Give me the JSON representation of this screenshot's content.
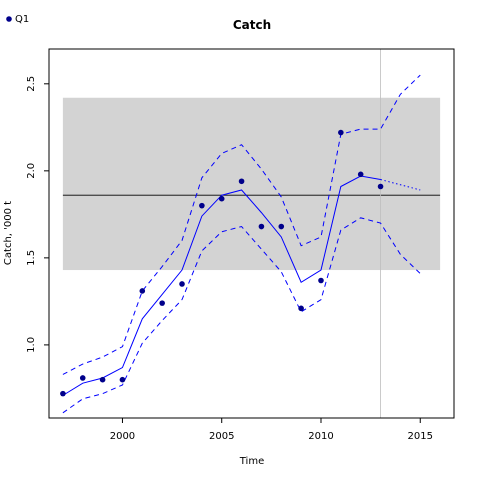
{
  "chart_data": {
    "type": "line",
    "title": "Catch",
    "xlabel": "Time",
    "ylabel": "Catch, '000 t",
    "xlim": [
      1996.3,
      2016.7
    ],
    "ylim": [
      0.58,
      2.7
    ],
    "x_ticks": [
      2000,
      2005,
      2010,
      2015
    ],
    "x_tick_labels": [
      "2000",
      "2005",
      "2010",
      "2015"
    ],
    "y_ticks": [
      1.0,
      1.5,
      2.0,
      2.5
    ],
    "y_tick_labels": [
      "1.0",
      "1.5",
      "2.0",
      "2.5"
    ],
    "grid": false,
    "legend": {
      "placement": "top-left",
      "entries": [
        {
          "label": "Q1",
          "color": "#00008b",
          "marker": "dot"
        }
      ]
    },
    "band": {
      "x_start": 1997,
      "x_end": 2016,
      "y_low": 1.43,
      "y_high": 2.42,
      "color": "#d3d3d3"
    },
    "reference_line": {
      "y": 1.86,
      "x_start": 1997,
      "x_end": 2016,
      "color": "#000000"
    },
    "vertical_line": {
      "x": 2013,
      "color": "#bebebe"
    },
    "series": [
      {
        "name": "Q1",
        "kind": "points",
        "color": "#00008b",
        "x": [
          1997,
          1998,
          1999,
          2000,
          2001,
          2002,
          2003,
          2004,
          2005,
          2006,
          2007,
          2008,
          2009,
          2010,
          2011,
          2012,
          2013
        ],
        "values": [
          0.72,
          0.81,
          0.8,
          0.8,
          1.31,
          1.24,
          1.35,
          1.8,
          1.84,
          1.94,
          1.68,
          1.68,
          1.21,
          1.37,
          2.22,
          1.98,
          1.91
        ]
      },
      {
        "kind": "line",
        "style": "solid",
        "color": "#0000ff",
        "x": [
          1997,
          1998,
          1999,
          2000,
          2001,
          2002,
          2003,
          2004,
          2005,
          2006,
          2007,
          2008,
          2009,
          2010,
          2011,
          2012,
          2013
        ],
        "values": [
          0.71,
          0.78,
          0.81,
          0.87,
          1.15,
          1.29,
          1.43,
          1.74,
          1.86,
          1.89,
          1.76,
          1.62,
          1.36,
          1.43,
          1.91,
          1.97,
          1.95
        ]
      },
      {
        "kind": "line",
        "style": "dashed",
        "color": "#0000ff",
        "x": [
          1997,
          1998,
          1999,
          2000,
          2001,
          2002,
          2003,
          2004,
          2005,
          2006,
          2007,
          2008,
          2009,
          2010,
          2011,
          2012,
          2013,
          2014,
          2015
        ],
        "values": [
          0.83,
          0.89,
          0.93,
          0.99,
          1.31,
          1.45,
          1.6,
          1.96,
          2.1,
          2.15,
          2.01,
          1.85,
          1.57,
          1.62,
          2.21,
          2.24,
          2.24,
          2.44,
          2.55
        ]
      },
      {
        "kind": "line",
        "style": "dashed",
        "color": "#0000ff",
        "x": [
          1997,
          1998,
          1999,
          2000,
          2001,
          2002,
          2003,
          2004,
          2005,
          2006,
          2007,
          2008,
          2009,
          2010,
          2011,
          2012,
          2013,
          2014,
          2015
        ],
        "values": [
          0.61,
          0.69,
          0.72,
          0.77,
          1.01,
          1.14,
          1.26,
          1.54,
          1.65,
          1.68,
          1.55,
          1.42,
          1.19,
          1.26,
          1.66,
          1.73,
          1.7,
          1.52,
          1.41
        ]
      },
      {
        "kind": "line",
        "style": "dotted",
        "color": "#0000ff",
        "x": [
          2013,
          2014,
          2015
        ],
        "values": [
          1.95,
          1.92,
          1.89
        ]
      }
    ]
  }
}
